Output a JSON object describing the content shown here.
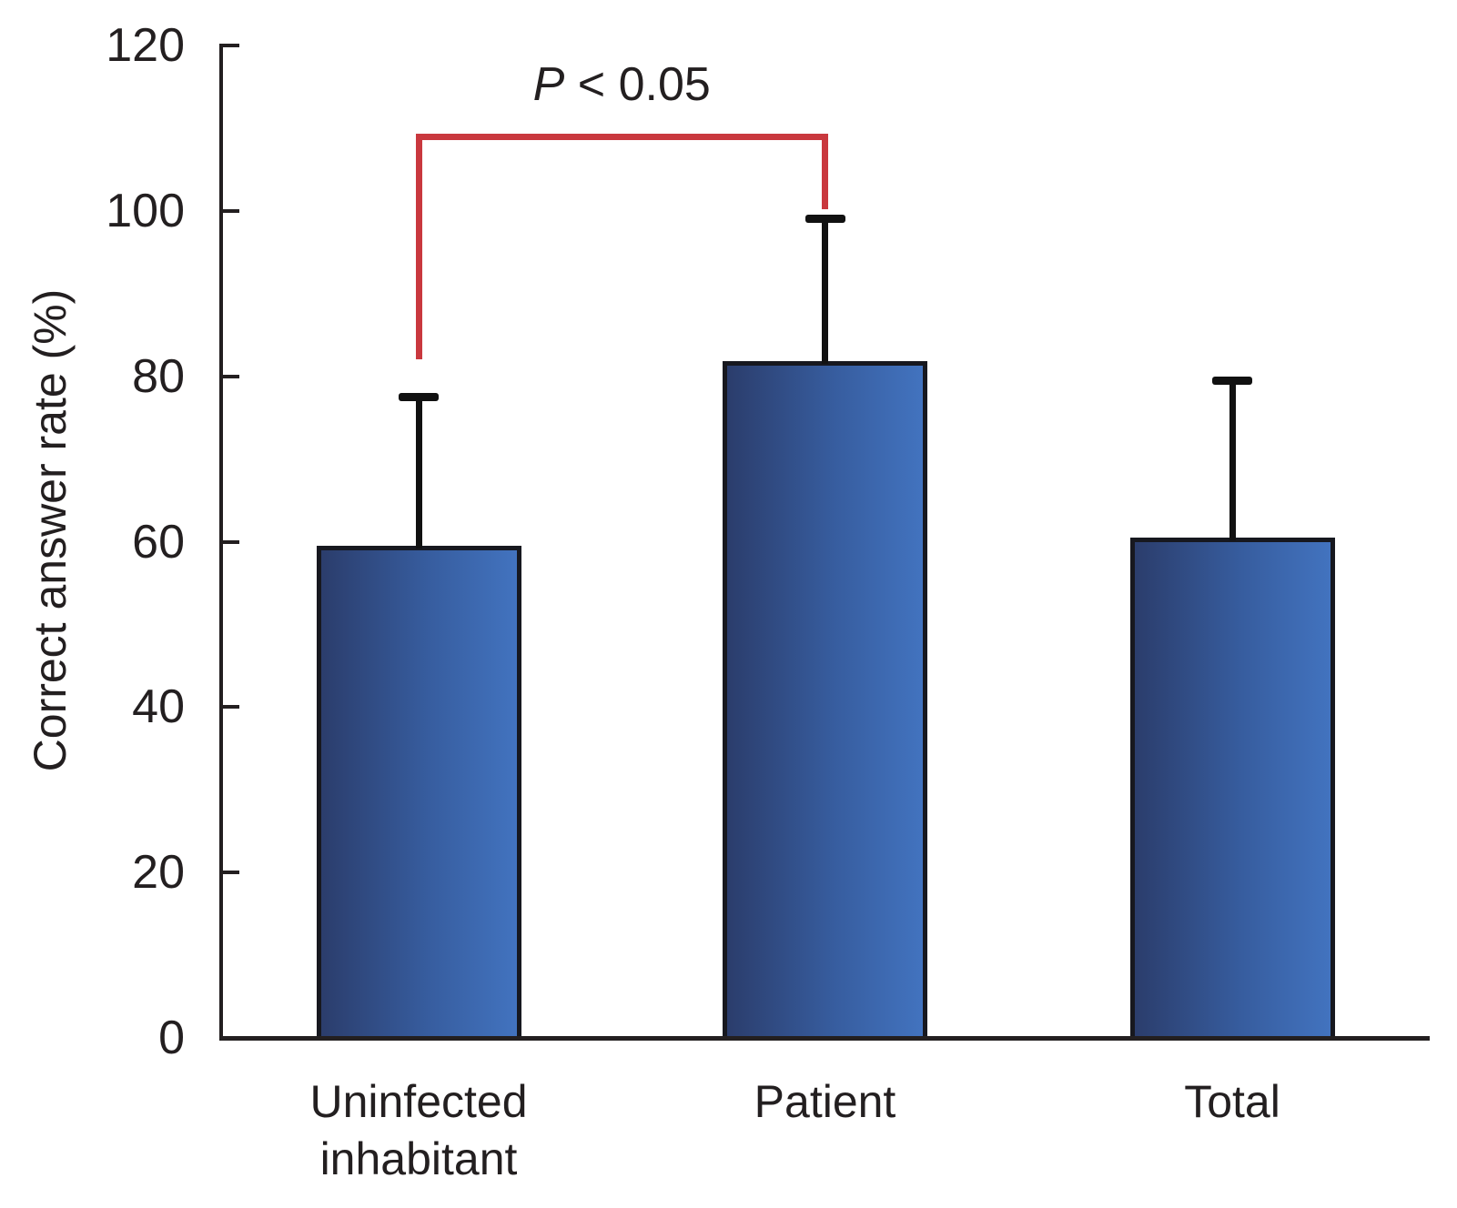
{
  "figure": {
    "background": "#ffffff",
    "text_color": "#231f20"
  },
  "chart_data": {
    "type": "bar",
    "ylabel": "Correct answer rate (%)",
    "ylim": [
      0,
      120
    ],
    "yticks": [
      0,
      20,
      40,
      60,
      80,
      100,
      120
    ],
    "categories": [
      "Uninfected\ninhabitant",
      "Patient",
      "Total"
    ],
    "values": [
      59.5,
      81.8,
      60.5
    ],
    "errors_plus": [
      18,
      17.2,
      19
    ],
    "grid": false,
    "bar_fill_gradient": [
      "#2b3d6c",
      "#375d9f",
      "#4273bf"
    ],
    "bar_border_color": "#17181f",
    "error_bar_color": "#111111",
    "axis_color": "#231f20",
    "significance": {
      "label_italic": "P",
      "label_rest": " < 0.05",
      "from_index": 0,
      "to_index": 1,
      "color": "#c9383e",
      "top_value": 109.3,
      "from_end_value": 82,
      "to_end_value": 100.2
    }
  }
}
